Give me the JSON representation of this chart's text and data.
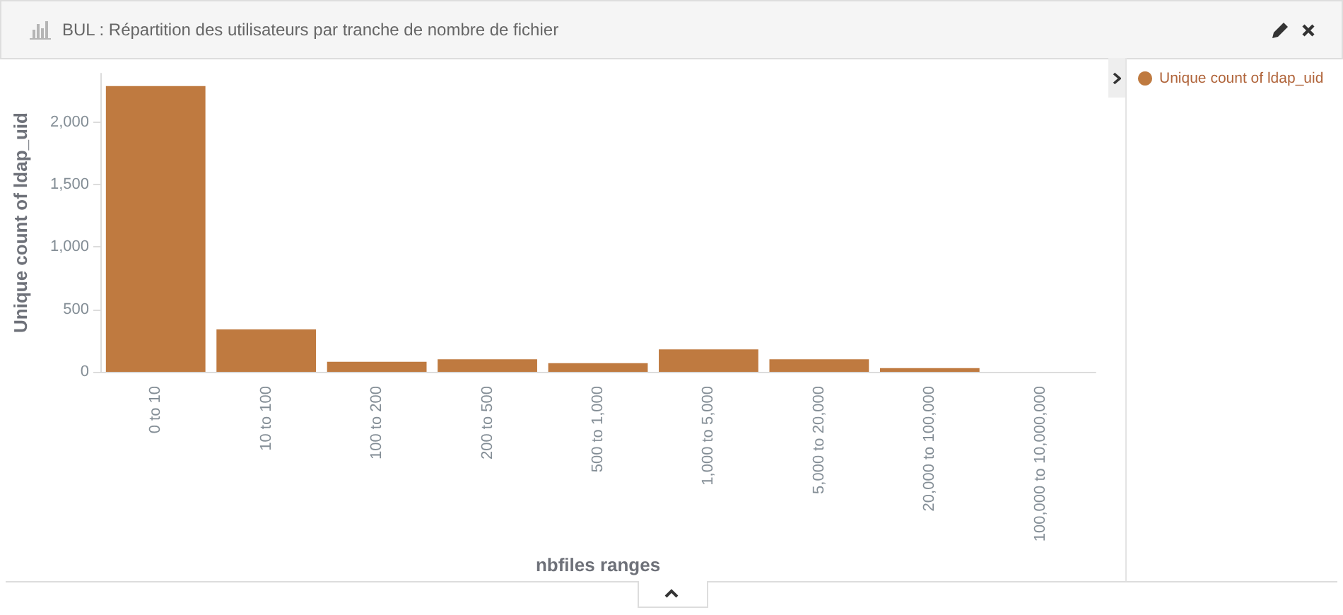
{
  "chart_data": {
    "type": "bar",
    "title": "BUL : Répartition des utilisateurs par tranche de nombre de fichier",
    "categories": [
      "0 to 10",
      "10 to 100",
      "100 to 200",
      "200 to 500",
      "500 to 1,000",
      "1,000 to 5,000",
      "5,000 to 20,000",
      "20,000 to 100,000",
      "100,000 to 10,000,000"
    ],
    "series": [
      {
        "name": "Unique count of ldap_uid",
        "color": "#bf7a40",
        "values": [
          2290,
          340,
          80,
          100,
          70,
          180,
          100,
          30,
          0
        ]
      }
    ],
    "xlabel": "nbfiles ranges",
    "ylabel": "Unique count of ldap_uid",
    "ylim": [
      0,
      2390
    ],
    "yticks": [
      0,
      500,
      {
        "value": 1000,
        "label": "1,000"
      },
      {
        "value": 1500,
        "label": "1,500"
      },
      {
        "value": 2000,
        "label": "2,000"
      }
    ],
    "grid": false,
    "legend": "top right"
  }
}
